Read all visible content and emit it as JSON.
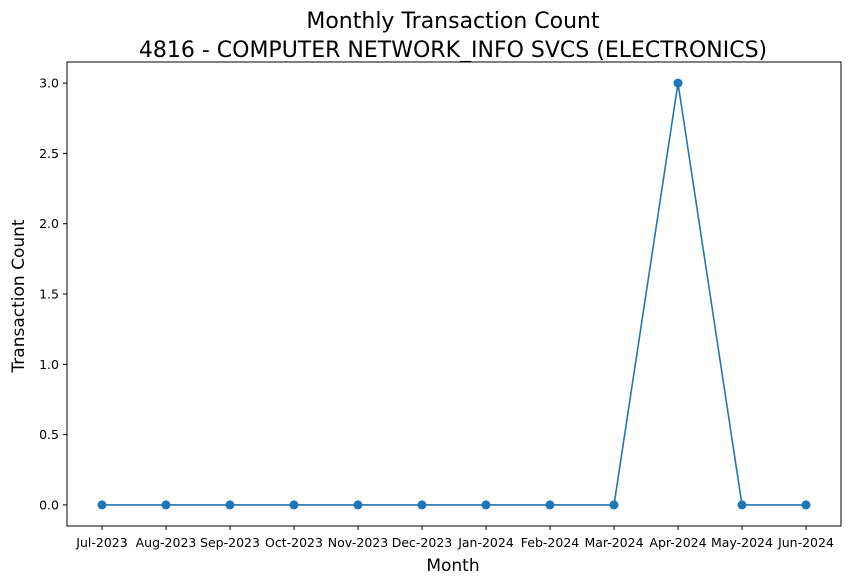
{
  "chart_data": {
    "type": "line",
    "title": "Monthly Transaction Count",
    "subtitle": "4816 - COMPUTER NETWORK_INFO SVCS (ELECTRONICS)",
    "xlabel": "Month",
    "ylabel": "Transaction Count",
    "categories": [
      "Jul-2023",
      "Aug-2023",
      "Sep-2023",
      "Oct-2023",
      "Nov-2023",
      "Dec-2023",
      "Jan-2024",
      "Feb-2024",
      "Mar-2024",
      "Apr-2024",
      "May-2024",
      "Jun-2024"
    ],
    "series": [
      {
        "values": [
          0,
          0,
          0,
          0,
          0,
          0,
          0,
          0,
          0,
          3,
          0,
          0
        ],
        "color": "#1f77b4",
        "marker": "circle"
      }
    ],
    "yticks": [
      "0.0",
      "0.5",
      "1.0",
      "1.5",
      "2.0",
      "2.5",
      "3.0"
    ],
    "ylim": [
      -0.15,
      3.15
    ],
    "grid": false,
    "legend": "none"
  }
}
